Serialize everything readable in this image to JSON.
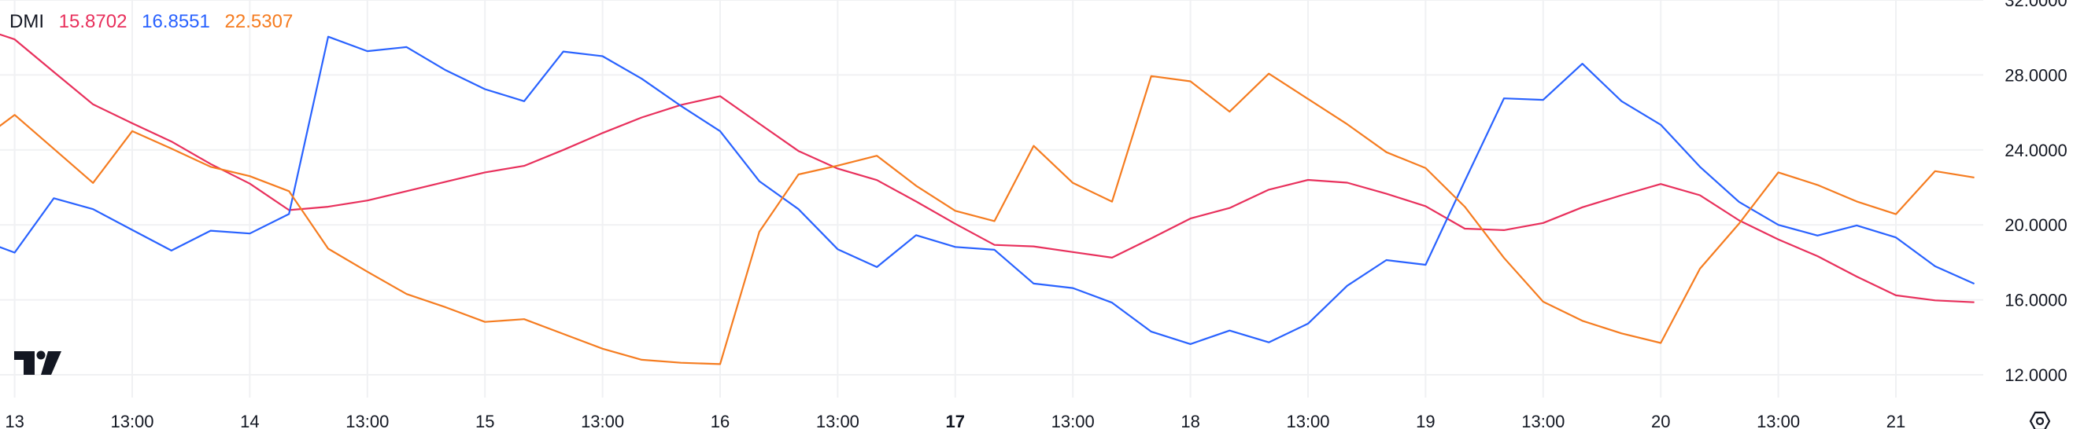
{
  "legend": {
    "title": "DMI",
    "values": [
      "15.8702",
      "16.8551",
      "22.5307"
    ]
  },
  "chart_data": {
    "type": "line",
    "title": "DMI",
    "x": [
      "12 21:00",
      "13 01:00",
      "13 05:00",
      "13 09:00",
      "13 13:00",
      "13 17:00",
      "13 21:00",
      "14 01:00",
      "14 05:00",
      "14 09:00",
      "14 13:00",
      "14 17:00",
      "14 21:00",
      "15 01:00",
      "15 05:00",
      "15 09:00",
      "15 13:00",
      "15 17:00",
      "15 21:00",
      "16 01:00",
      "16 05:00",
      "16 09:00",
      "16 13:00",
      "16 17:00",
      "16 21:00",
      "17 01:00",
      "17 05:00",
      "17 09:00",
      "17 13:00",
      "17 17:00",
      "17 21:00",
      "18 01:00",
      "18 05:00",
      "18 09:00",
      "18 13:00",
      "18 17:00",
      "18 21:00",
      "19 01:00",
      "19 05:00",
      "19 09:00",
      "19 13:00",
      "19 17:00",
      "19 21:00",
      "20 01:00",
      "20 05:00",
      "20 09:00",
      "20 13:00",
      "20 17:00",
      "20 21:00",
      "21 01:00",
      "21 05:00",
      "21 09:00"
    ],
    "series": [
      {
        "color": "#E8305C",
        "values": [
          30.6,
          29.9,
          28.16,
          26.43,
          25.42,
          24.45,
          23.25,
          22.2,
          20.79,
          20.97,
          21.3,
          21.8,
          22.3,
          22.8,
          23.15,
          24.0,
          24.9,
          25.73,
          26.4,
          26.87,
          25.4,
          23.94,
          23.0,
          22.39,
          21.25,
          20.06,
          18.93,
          18.85,
          18.55,
          18.25,
          19.28,
          20.34,
          20.9,
          21.88,
          22.4,
          22.25,
          21.66,
          21.0,
          19.8,
          19.72,
          20.1,
          20.94,
          21.58,
          22.18,
          21.58,
          20.24,
          19.22,
          18.33,
          17.24,
          16.24,
          15.97,
          15.87
        ]
      },
      {
        "color": "#2962FF",
        "values": [
          19.3,
          18.52,
          21.42,
          20.84,
          19.73,
          18.63,
          19.69,
          19.54,
          20.58,
          30.04,
          29.27,
          29.49,
          28.25,
          27.24,
          26.6,
          29.25,
          29.0,
          27.8,
          26.35,
          25.0,
          22.33,
          20.84,
          18.7,
          17.75,
          19.45,
          18.82,
          18.67,
          16.87,
          16.63,
          15.85,
          14.3,
          13.64,
          14.36,
          13.73,
          14.73,
          16.75,
          18.12,
          17.87,
          22.34,
          26.75,
          26.67,
          28.6,
          26.6,
          25.34,
          23.1,
          21.22,
          20.0,
          19.43,
          19.97,
          19.33,
          17.79,
          16.86
        ]
      },
      {
        "color": "#F57C20",
        "values": [
          24.3,
          25.87,
          24.06,
          22.24,
          25.0,
          24.07,
          23.1,
          22.6,
          21.8,
          18.73,
          17.5,
          16.31,
          15.6,
          14.82,
          14.97,
          14.18,
          13.39,
          12.8,
          12.64,
          12.57,
          19.63,
          22.69,
          23.16,
          23.69,
          22.09,
          20.75,
          20.2,
          24.22,
          22.24,
          21.24,
          27.94,
          27.66,
          26.04,
          28.07,
          26.72,
          25.37,
          23.88,
          23.03,
          20.97,
          18.24,
          15.9,
          14.88,
          14.21,
          13.7,
          17.66,
          20.07,
          22.8,
          22.13,
          21.25,
          20.57,
          22.87,
          22.53
        ]
      }
    ],
    "ylim": [
      11,
      32
    ],
    "y_ticks": [
      "12.0000",
      "16.0000",
      "20.0000",
      "24.0000",
      "28.0000",
      "32.0000"
    ],
    "x_ticks": [
      {
        "label": "13",
        "at": "13 01:00",
        "bold": false
      },
      {
        "label": "13:00",
        "at": "13 13:00",
        "bold": false
      },
      {
        "label": "14",
        "at": "14 01:00",
        "bold": false
      },
      {
        "label": "13:00",
        "at": "14 13:00",
        "bold": false
      },
      {
        "label": "15",
        "at": "15 01:00",
        "bold": false
      },
      {
        "label": "13:00",
        "at": "15 13:00",
        "bold": false
      },
      {
        "label": "16",
        "at": "16 01:00",
        "bold": false
      },
      {
        "label": "13:00",
        "at": "16 13:00",
        "bold": false
      },
      {
        "label": "17",
        "at": "17 01:00",
        "bold": true
      },
      {
        "label": "13:00",
        "at": "17 13:00",
        "bold": false
      },
      {
        "label": "18",
        "at": "18 01:00",
        "bold": false
      },
      {
        "label": "13:00",
        "at": "18 13:00",
        "bold": false
      },
      {
        "label": "19",
        "at": "19 01:00",
        "bold": false
      },
      {
        "label": "13:00",
        "at": "19 13:00",
        "bold": false
      },
      {
        "label": "20",
        "at": "20 01:00",
        "bold": false
      },
      {
        "label": "13:00",
        "at": "20 13:00",
        "bold": false
      },
      {
        "label": "21",
        "at": "21 01:00",
        "bold": false
      }
    ],
    "grid": true,
    "legend_placement": "top-left"
  },
  "icons": {
    "logo": "tradingview-logo",
    "settings": "settings-hexagon-icon"
  }
}
